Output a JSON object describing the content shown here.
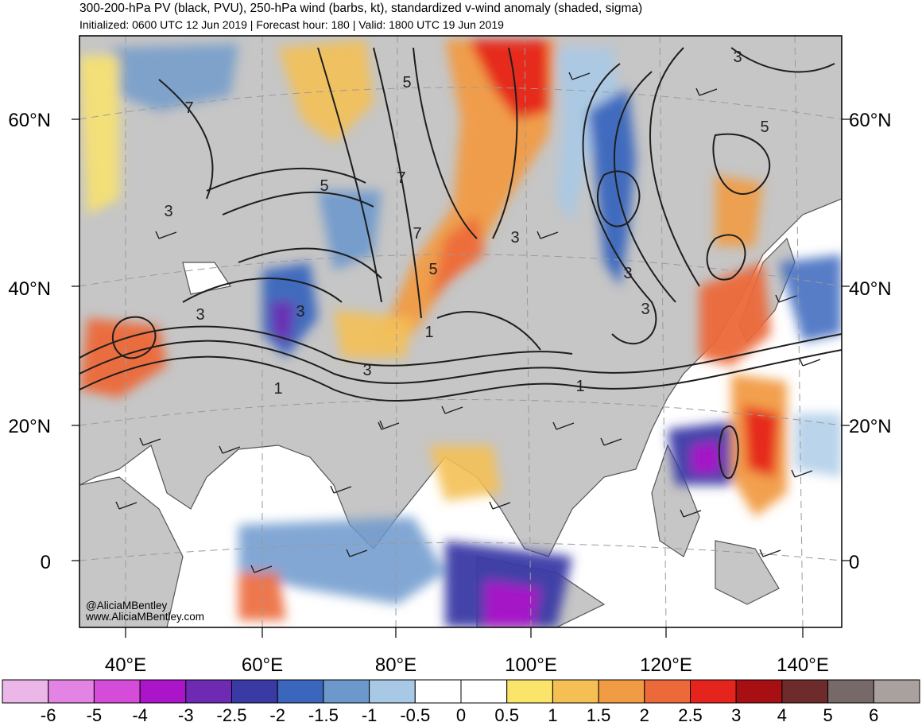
{
  "header": {
    "title": "300-200-hPa PV (black, PVU), 250-hPa wind (barbs, kt), standardized v-wind anomaly (shaded, sigma)",
    "subtitle": "Initialized: 0600 UTC 12 Jun 2019 | Forecast hour: 180 | Valid: 1800 UTC 19 Jun 2019"
  },
  "map": {
    "latitude_labels": [
      "60°N",
      "40°N",
      "20°N",
      "0"
    ],
    "longitude_labels": [
      "40°E",
      "60°E",
      "80°E",
      "100°E",
      "120°E",
      "140°E"
    ],
    "pv_contour_labels": [
      "7",
      "3",
      "5",
      "7",
      "7",
      "3",
      "5",
      "3",
      "3",
      "5",
      "3",
      "3",
      "3",
      "1",
      "1",
      "1",
      "3"
    ],
    "colors": {
      "land": "#c6c6c6",
      "ocean": "#ffffff",
      "contour": "#1e1e1e",
      "coastline": "#555555"
    }
  },
  "credit": {
    "handle": "@AliciaMBentley",
    "website": "www.AliciaMBentley.com"
  },
  "colorbar": {
    "labels": [
      "-6",
      "-5",
      "-4",
      "-3",
      "-2.5",
      "-2",
      "-1.5",
      "-1",
      "-0.5",
      "0",
      "0.5",
      "1",
      "1.5",
      "2",
      "2.5",
      "3",
      "4",
      "5",
      "6"
    ],
    "colors": [
      "#ebb7e8",
      "#e383e3",
      "#d54cd9",
      "#ab14c9",
      "#6e2ab3",
      "#3a3aa5",
      "#3a66bd",
      "#6d98cc",
      "#a8c9e6",
      "#ffffff",
      "#ffffff",
      "#fbe46a",
      "#f4c054",
      "#f19b44",
      "#ec693a",
      "#e6241e",
      "#a80f13",
      "#6d2b2b",
      "#766967",
      "#a9a19e"
    ]
  }
}
